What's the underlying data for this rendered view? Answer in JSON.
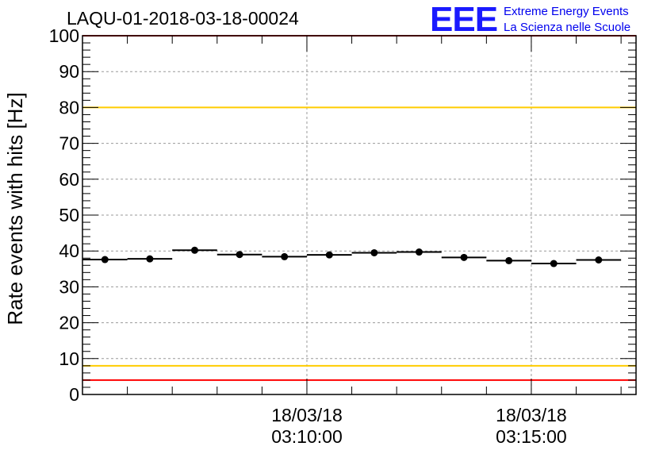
{
  "header": {
    "title": "LAQU-01-2018-03-18-00024",
    "logo_mark": "EEE",
    "logo_line1": "Extreme Energy Events",
    "logo_line2": "La Scienza nelle Scuole"
  },
  "chart_data": {
    "type": "scatter",
    "title": "LAQU-01-2018-03-18-00024",
    "xlabel": "",
    "ylabel": "Rate events with hits [Hz]",
    "ylim": [
      0,
      100
    ],
    "yticks": [
      0,
      10,
      20,
      30,
      40,
      50,
      60,
      70,
      80,
      90,
      100
    ],
    "x_unit": "seconds",
    "xlim": [
      0,
      740
    ],
    "xticks": [
      {
        "x": 300,
        "date": "18/03/18",
        "time": "03:10:00"
      },
      {
        "x": 600,
        "date": "18/03/18",
        "time": "03:15:00"
      }
    ],
    "grid": true,
    "reference_lines": [
      {
        "value": 100,
        "color": "#ff0000"
      },
      {
        "value": 80,
        "color": "#ffcc00"
      },
      {
        "value": 8,
        "color": "#ffcc00"
      },
      {
        "value": 4,
        "color": "#ff0000"
      }
    ],
    "bin_halfwidth": 30,
    "series": [
      {
        "x": [
          30,
          90,
          150,
          210,
          270,
          330,
          390,
          450,
          510,
          570,
          630,
          690
        ],
        "y": [
          37.6,
          37.8,
          40.2,
          39.0,
          38.4,
          38.9,
          39.5,
          39.7,
          38.2,
          37.3,
          36.5,
          37.5
        ]
      }
    ],
    "colors": {
      "marker": "#000000",
      "grid": "#9a9a9a",
      "frame": "#000000"
    }
  }
}
